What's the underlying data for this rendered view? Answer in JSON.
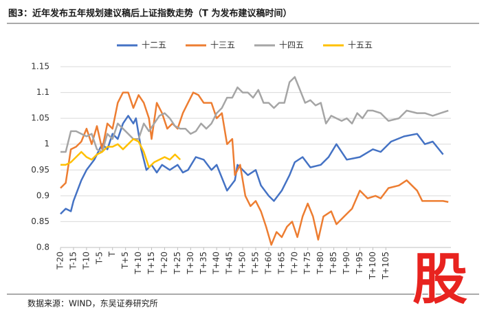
{
  "chart_data": {
    "type": "line",
    "title": "图3：近年发布五年规划建议稿后上证指数走势（T 为发布建议稿时间）",
    "source": "数据来源：WIND，东吴证券研究所",
    "watermark": "股",
    "xlim": [
      -20,
      130
    ],
    "xticks": [
      {
        "value": -20,
        "label": "T-20"
      },
      {
        "value": -15,
        "label": "T-15"
      },
      {
        "value": -10,
        "label": "T-10"
      },
      {
        "value": -5,
        "label": "T-5"
      },
      {
        "value": 0,
        "label": "T"
      },
      {
        "value": 5,
        "label": "T+5"
      },
      {
        "value": 10,
        "label": "T+10"
      },
      {
        "value": 15,
        "label": "T+15"
      },
      {
        "value": 20,
        "label": "T+20"
      },
      {
        "value": 25,
        "label": "T+25"
      },
      {
        "value": 30,
        "label": "T+30"
      },
      {
        "value": 35,
        "label": "T+35"
      },
      {
        "value": 40,
        "label": "T+40"
      },
      {
        "value": 45,
        "label": "T+45"
      },
      {
        "value": 50,
        "label": "T+50"
      },
      {
        "value": 55,
        "label": "T+55"
      },
      {
        "value": 60,
        "label": "T+60"
      },
      {
        "value": 65,
        "label": "T+65"
      },
      {
        "value": 70,
        "label": "T+70"
      },
      {
        "value": 75,
        "label": "T+75"
      },
      {
        "value": 80,
        "label": "T+80"
      },
      {
        "value": 85,
        "label": "T+85"
      },
      {
        "value": 90,
        "label": "T+90"
      },
      {
        "value": 95,
        "label": "T+95"
      },
      {
        "value": 100,
        "label": "T+100"
      },
      {
        "value": 105,
        "label": "T+105"
      }
    ],
    "ylim": [
      0.8,
      1.15
    ],
    "yticks": [
      0.8,
      0.85,
      0.9,
      0.95,
      1,
      1.05,
      1.1,
      1.15
    ],
    "grid": true,
    "legend": "top",
    "series": [
      {
        "name": "十二五",
        "color": "#4472c4",
        "x": [
          -20,
          -18,
          -16,
          -15,
          -12,
          -10,
          -7,
          -4,
          -2,
          0,
          2,
          4,
          6,
          8,
          9,
          11,
          13,
          15,
          17,
          19,
          22,
          25,
          27,
          29,
          32,
          35,
          38,
          40,
          44,
          47,
          48,
          52,
          55,
          57,
          60,
          62,
          65,
          68,
          70,
          73,
          76,
          80,
          83,
          86,
          90,
          95,
          100,
          103,
          107,
          112,
          117,
          120,
          123,
          127
        ],
        "values": [
          0.865,
          0.875,
          0.87,
          0.89,
          0.93,
          0.95,
          0.97,
          1.0,
          0.99,
          1.02,
          1.01,
          1.04,
          1.055,
          1.04,
          1.05,
          0.99,
          0.95,
          0.96,
          0.945,
          0.96,
          0.95,
          0.96,
          0.945,
          0.95,
          0.975,
          0.97,
          0.95,
          0.96,
          0.91,
          0.93,
          0.96,
          0.94,
          0.95,
          0.92,
          0.9,
          0.89,
          0.91,
          0.94,
          0.965,
          0.975,
          0.955,
          0.96,
          0.975,
          1.0,
          0.97,
          0.975,
          0.99,
          0.985,
          1.005,
          1.015,
          1.02,
          1.0,
          1.005,
          0.98
        ]
      },
      {
        "name": "十三五",
        "color": "#ed7d31",
        "x": [
          -20,
          -18,
          -16,
          -14,
          -12,
          -10,
          -8,
          -6,
          -4,
          -2,
          0,
          2,
          4,
          6,
          8,
          10,
          12,
          14,
          15,
          17,
          19,
          21,
          23,
          25,
          27,
          29,
          31,
          33,
          35,
          38,
          40,
          42,
          44,
          46,
          47,
          49,
          51,
          53,
          55,
          57,
          59,
          61,
          63,
          65,
          67,
          69,
          71,
          73,
          75,
          77,
          79,
          81,
          84,
          86,
          89,
          92,
          95,
          98,
          101,
          103,
          106,
          110,
          113,
          117,
          119,
          123,
          127,
          129
        ],
        "values": [
          0.915,
          0.925,
          0.99,
          0.995,
          1.005,
          1.03,
          1.0,
          1.035,
          0.99,
          1.04,
          1.03,
          1.08,
          1.1,
          1.1,
          1.07,
          1.095,
          1.08,
          1.05,
          1.01,
          1.08,
          1.06,
          1.03,
          1.04,
          1.03,
          1.06,
          1.08,
          1.1,
          1.095,
          1.08,
          1.08,
          1.05,
          1.06,
          1.0,
          1.01,
          0.94,
          0.96,
          0.9,
          0.88,
          0.89,
          0.87,
          0.84,
          0.805,
          0.83,
          0.82,
          0.84,
          0.85,
          0.82,
          0.86,
          0.885,
          0.86,
          0.815,
          0.86,
          0.87,
          0.845,
          0.86,
          0.875,
          0.91,
          0.895,
          0.9,
          0.895,
          0.915,
          0.92,
          0.93,
          0.91,
          0.89,
          0.89,
          0.89,
          0.888
        ]
      },
      {
        "name": "十四五",
        "color": "#a5a5a5",
        "x": [
          -20,
          -18,
          -16,
          -14,
          -12,
          -10,
          -8,
          -6,
          -4,
          -2,
          0,
          2,
          4,
          6,
          8,
          10,
          12,
          14,
          16,
          18,
          20,
          22,
          24,
          26,
          28,
          30,
          32,
          34,
          36,
          38,
          40,
          42,
          44,
          46,
          48,
          50,
          52,
          54,
          56,
          58,
          60,
          62,
          64,
          66,
          68,
          70,
          72,
          74,
          76,
          78,
          80,
          82,
          84,
          86,
          88,
          90,
          92,
          94,
          96,
          98,
          100,
          103,
          106,
          110,
          113,
          117,
          120,
          123,
          126,
          129
        ],
        "values": [
          0.985,
          0.985,
          1.025,
          1.025,
          1.02,
          1.015,
          1.02,
          0.99,
          0.985,
          1.02,
          1.01,
          1.04,
          1.03,
          1.02,
          1.01,
          1.01,
          1.04,
          1.025,
          1.04,
          1.055,
          1.06,
          1.05,
          1.035,
          1.03,
          1.03,
          1.02,
          1.025,
          1.04,
          1.03,
          1.04,
          1.06,
          1.07,
          1.09,
          1.09,
          1.11,
          1.1,
          1.1,
          1.09,
          1.105,
          1.08,
          1.08,
          1.07,
          1.08,
          1.08,
          1.12,
          1.13,
          1.105,
          1.08,
          1.085,
          1.075,
          1.08,
          1.04,
          1.055,
          1.05,
          1.045,
          1.05,
          1.04,
          1.06,
          1.05,
          1.065,
          1.065,
          1.06,
          1.045,
          1.05,
          1.065,
          1.06,
          1.06,
          1.055,
          1.06,
          1.065
        ]
      },
      {
        "name": "十五五",
        "color": "#ffc000",
        "x": [
          -20,
          -18,
          -16,
          -14,
          -12,
          -10,
          -8,
          -6,
          -4,
          -2,
          0,
          2,
          4,
          6,
          8,
          10,
          12,
          14,
          16,
          18,
          20,
          22,
          24,
          26
        ],
        "values": [
          0.96,
          0.96,
          0.965,
          0.975,
          0.985,
          0.975,
          0.97,
          0.98,
          0.985,
          0.995,
          0.995,
          1.0,
          0.99,
          1.0,
          1.01,
          1.005,
          0.985,
          0.955,
          0.965,
          0.97,
          0.975,
          0.97,
          0.98,
          0.97
        ]
      }
    ]
  }
}
